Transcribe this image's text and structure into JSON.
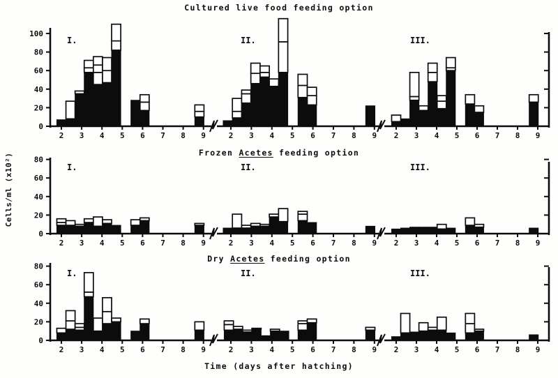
{
  "figure": {
    "y_axis_label": "Cells/ml (x10²)",
    "x_axis_label": "Time (days after hatching)",
    "colors": {
      "ink": "#0c0c0c",
      "paper": "#fefefc"
    }
  },
  "chart_data": {
    "type": "bar",
    "stacked": true,
    "bar_styles": {
      "bottom_segment_fill": "#0c0c0c",
      "upper_segments_fill": "#ffffff"
    },
    "x_ticks": [
      2,
      3,
      4,
      5,
      6,
      7,
      8,
      9
    ],
    "x_range": [
      1.5,
      9.5
    ],
    "panels": [
      {
        "title_runs": [
          {
            "text": "Cultured live food feeding option",
            "underline": false
          }
        ],
        "ylim": [
          0,
          100
        ],
        "yticks": [
          0,
          20,
          40,
          60,
          80,
          100
        ],
        "sections": [
          {
            "label": "I.",
            "bars": [
              {
                "x": 2.0,
                "black": 7,
                "white": []
              },
              {
                "x": 2.45,
                "black": 8,
                "white": [
                  27
                ]
              },
              {
                "x": 2.9,
                "black": 35,
                "white": [
                  38
                ]
              },
              {
                "x": 3.35,
                "black": 58,
                "white": [
                  63,
                  71
                ]
              },
              {
                "x": 3.8,
                "black": 45,
                "white": [
                  58,
                  66,
                  75
                ]
              },
              {
                "x": 4.25,
                "black": 47,
                "white": [
                  60,
                  74
                ]
              },
              {
                "x": 4.7,
                "black": 82,
                "white": [
                  92,
                  110
                ]
              },
              {
                "x": 5.65,
                "black": 28,
                "white": []
              },
              {
                "x": 6.1,
                "black": 17,
                "white": [
                  26,
                  34
                ]
              },
              {
                "x": 8.8,
                "black": 10,
                "white": [
                  16,
                  23
                ]
              }
            ]
          },
          {
            "label": "II.",
            "bars": [
              {
                "x": 1.85,
                "black": 6,
                "white": []
              },
              {
                "x": 2.3,
                "black": 9,
                "white": [
                  16,
                  30
                ]
              },
              {
                "x": 2.75,
                "black": 25,
                "white": [
                  35,
                  39
                ]
              },
              {
                "x": 3.2,
                "black": 46,
                "white": [
                  57,
                  68
                ]
              },
              {
                "x": 3.65,
                "black": 53,
                "white": [
                  58,
                  65
                ]
              },
              {
                "x": 4.1,
                "black": 43,
                "white": [
                  51
                ]
              },
              {
                "x": 4.55,
                "black": 58,
                "white": [
                  91,
                  116
                ]
              },
              {
                "x": 5.5,
                "black": 31,
                "white": [
                  44,
                  56
                ]
              },
              {
                "x": 5.95,
                "black": 23,
                "white": [
                  33,
                  42
                ]
              },
              {
                "x": 8.8,
                "black": 22,
                "white": []
              }
            ]
          },
          {
            "label": "III.",
            "bars": [
              {
                "x": 2.0,
                "black": 5,
                "white": [
                  12
                ]
              },
              {
                "x": 2.45,
                "black": 8,
                "white": []
              },
              {
                "x": 2.9,
                "black": 28,
                "white": [
                  32,
                  58
                ]
              },
              {
                "x": 3.35,
                "black": 17,
                "white": [
                  22
                ]
              },
              {
                "x": 3.8,
                "black": 48,
                "white": [
                  58,
                  68
                ]
              },
              {
                "x": 4.25,
                "black": 19,
                "white": [
                  27,
                  33
                ]
              },
              {
                "x": 4.7,
                "black": 60,
                "white": [
                  63,
                  74
                ]
              },
              {
                "x": 5.65,
                "black": 24,
                "white": [
                  34
                ]
              },
              {
                "x": 6.1,
                "black": 15,
                "white": [
                  22
                ]
              },
              {
                "x": 8.8,
                "black": 26,
                "white": [
                  34
                ]
              }
            ]
          }
        ]
      },
      {
        "title_runs": [
          {
            "text": "Frozen ",
            "underline": false
          },
          {
            "text": "Acetes",
            "underline": true
          },
          {
            "text": " feeding option",
            "underline": false
          }
        ],
        "ylim": [
          0,
          80
        ],
        "yticks": [
          0,
          20,
          40,
          60,
          80
        ],
        "sections": [
          {
            "label": "I.",
            "bars": [
              {
                "x": 2.0,
                "black": 9,
                "white": [
                  12,
                  16
                ]
              },
              {
                "x": 2.45,
                "black": 9,
                "white": [
                  14
                ]
              },
              {
                "x": 2.9,
                "black": 8,
                "white": [
                  10
                ]
              },
              {
                "x": 3.35,
                "black": 12,
                "white": [
                  16
                ]
              },
              {
                "x": 3.8,
                "black": 8,
                "white": [
                  18
                ]
              },
              {
                "x": 4.25,
                "black": 11,
                "white": [
                  15
                ]
              },
              {
                "x": 4.7,
                "black": 9,
                "white": []
              },
              {
                "x": 5.65,
                "black": 9,
                "white": [
                  15
                ]
              },
              {
                "x": 6.1,
                "black": 14,
                "white": [
                  17
                ]
              },
              {
                "x": 8.8,
                "black": 9,
                "white": [
                  11
                ]
              }
            ]
          },
          {
            "label": "II.",
            "bars": [
              {
                "x": 1.85,
                "black": 6,
                "white": []
              },
              {
                "x": 2.3,
                "black": 6,
                "white": [
                  21
                ]
              },
              {
                "x": 2.75,
                "black": 6,
                "white": [
                  9
                ]
              },
              {
                "x": 3.2,
                "black": 8,
                "white": [
                  11
                ]
              },
              {
                "x": 3.65,
                "black": 8,
                "white": [
                  10
                ]
              },
              {
                "x": 4.1,
                "black": 18,
                "white": [
                  21
                ]
              },
              {
                "x": 4.55,
                "black": 13,
                "white": [
                  27
                ]
              },
              {
                "x": 5.5,
                "black": 14,
                "white": [
                  21,
                  24
                ]
              },
              {
                "x": 5.95,
                "black": 12,
                "white": []
              },
              {
                "x": 8.8,
                "black": 8,
                "white": []
              }
            ]
          },
          {
            "label": "III.",
            "bars": [
              {
                "x": 2.0,
                "black": 5,
                "white": []
              },
              {
                "x": 2.45,
                "black": 6,
                "white": []
              },
              {
                "x": 2.9,
                "black": 7,
                "white": []
              },
              {
                "x": 3.35,
                "black": 7,
                "white": []
              },
              {
                "x": 3.8,
                "black": 7,
                "white": []
              },
              {
                "x": 4.25,
                "black": 5,
                "white": [
                  10
                ]
              },
              {
                "x": 4.7,
                "black": 6,
                "white": []
              },
              {
                "x": 5.65,
                "black": 9,
                "white": [
                  17
                ]
              },
              {
                "x": 6.1,
                "black": 7,
                "white": [
                  10
                ]
              },
              {
                "x": 8.8,
                "black": 6,
                "white": []
              }
            ]
          }
        ]
      },
      {
        "title_runs": [
          {
            "text": "Dry ",
            "underline": false
          },
          {
            "text": "Acetes",
            "underline": true
          },
          {
            "text": " feeding option",
            "underline": false
          }
        ],
        "ylim": [
          0,
          80
        ],
        "yticks": [
          0,
          20,
          40,
          60,
          80
        ],
        "sections": [
          {
            "label": "I.",
            "bars": [
              {
                "x": 2.0,
                "black": 8,
                "white": [
                  13
                ]
              },
              {
                "x": 2.45,
                "black": 12,
                "white": [
                  21,
                  32
                ]
              },
              {
                "x": 2.9,
                "black": 11,
                "white": [
                  14,
                  18
                ]
              },
              {
                "x": 3.35,
                "black": 47,
                "white": [
                  52,
                  73
                ]
              },
              {
                "x": 3.8,
                "black": 10,
                "white": [
                  24
                ]
              },
              {
                "x": 4.25,
                "black": 18,
                "white": [
                  31,
                  46
                ]
              },
              {
                "x": 4.7,
                "black": 20,
                "white": [
                  24
                ]
              },
              {
                "x": 5.65,
                "black": 10,
                "white": []
              },
              {
                "x": 6.1,
                "black": 18,
                "white": [
                  23
                ]
              },
              {
                "x": 8.8,
                "black": 11,
                "white": [
                  20
                ]
              }
            ]
          },
          {
            "label": "II.",
            "bars": [
              {
                "x": 1.9,
                "black": 11,
                "white": [
                  17,
                  21
                ]
              },
              {
                "x": 2.35,
                "black": 12,
                "white": [
                  15
                ]
              },
              {
                "x": 2.8,
                "black": 9,
                "white": [
                  11
                ]
              },
              {
                "x": 3.25,
                "black": 12,
                "white": [
                  13
                ]
              },
              {
                "x": 3.7,
                "black": 5,
                "white": []
              },
              {
                "x": 4.15,
                "black": 10,
                "white": [
                  12
                ]
              },
              {
                "x": 4.6,
                "black": 10,
                "white": []
              },
              {
                "x": 5.5,
                "black": 11,
                "white": [
                  18,
                  21
                ]
              },
              {
                "x": 5.95,
                "black": 19,
                "white": [
                  23
                ]
              },
              {
                "x": 8.8,
                "black": 11,
                "white": [
                  14
                ]
              }
            ]
          },
          {
            "label": "III.",
            "bars": [
              {
                "x": 2.0,
                "black": 4,
                "white": []
              },
              {
                "x": 2.45,
                "black": 8,
                "white": [
                  29
                ]
              },
              {
                "x": 2.9,
                "black": 9,
                "white": []
              },
              {
                "x": 3.35,
                "black": 10,
                "white": [
                  19
                ]
              },
              {
                "x": 3.8,
                "black": 11,
                "white": [
                  14
                ]
              },
              {
                "x": 4.25,
                "black": 11,
                "white": [
                  25
                ]
              },
              {
                "x": 4.7,
                "black": 8,
                "white": []
              },
              {
                "x": 5.65,
                "black": 8,
                "white": [
                  18,
                  29
                ]
              },
              {
                "x": 6.1,
                "black": 10,
                "white": [
                  12
                ]
              },
              {
                "x": 8.8,
                "black": 6,
                "white": []
              }
            ]
          }
        ]
      }
    ]
  }
}
